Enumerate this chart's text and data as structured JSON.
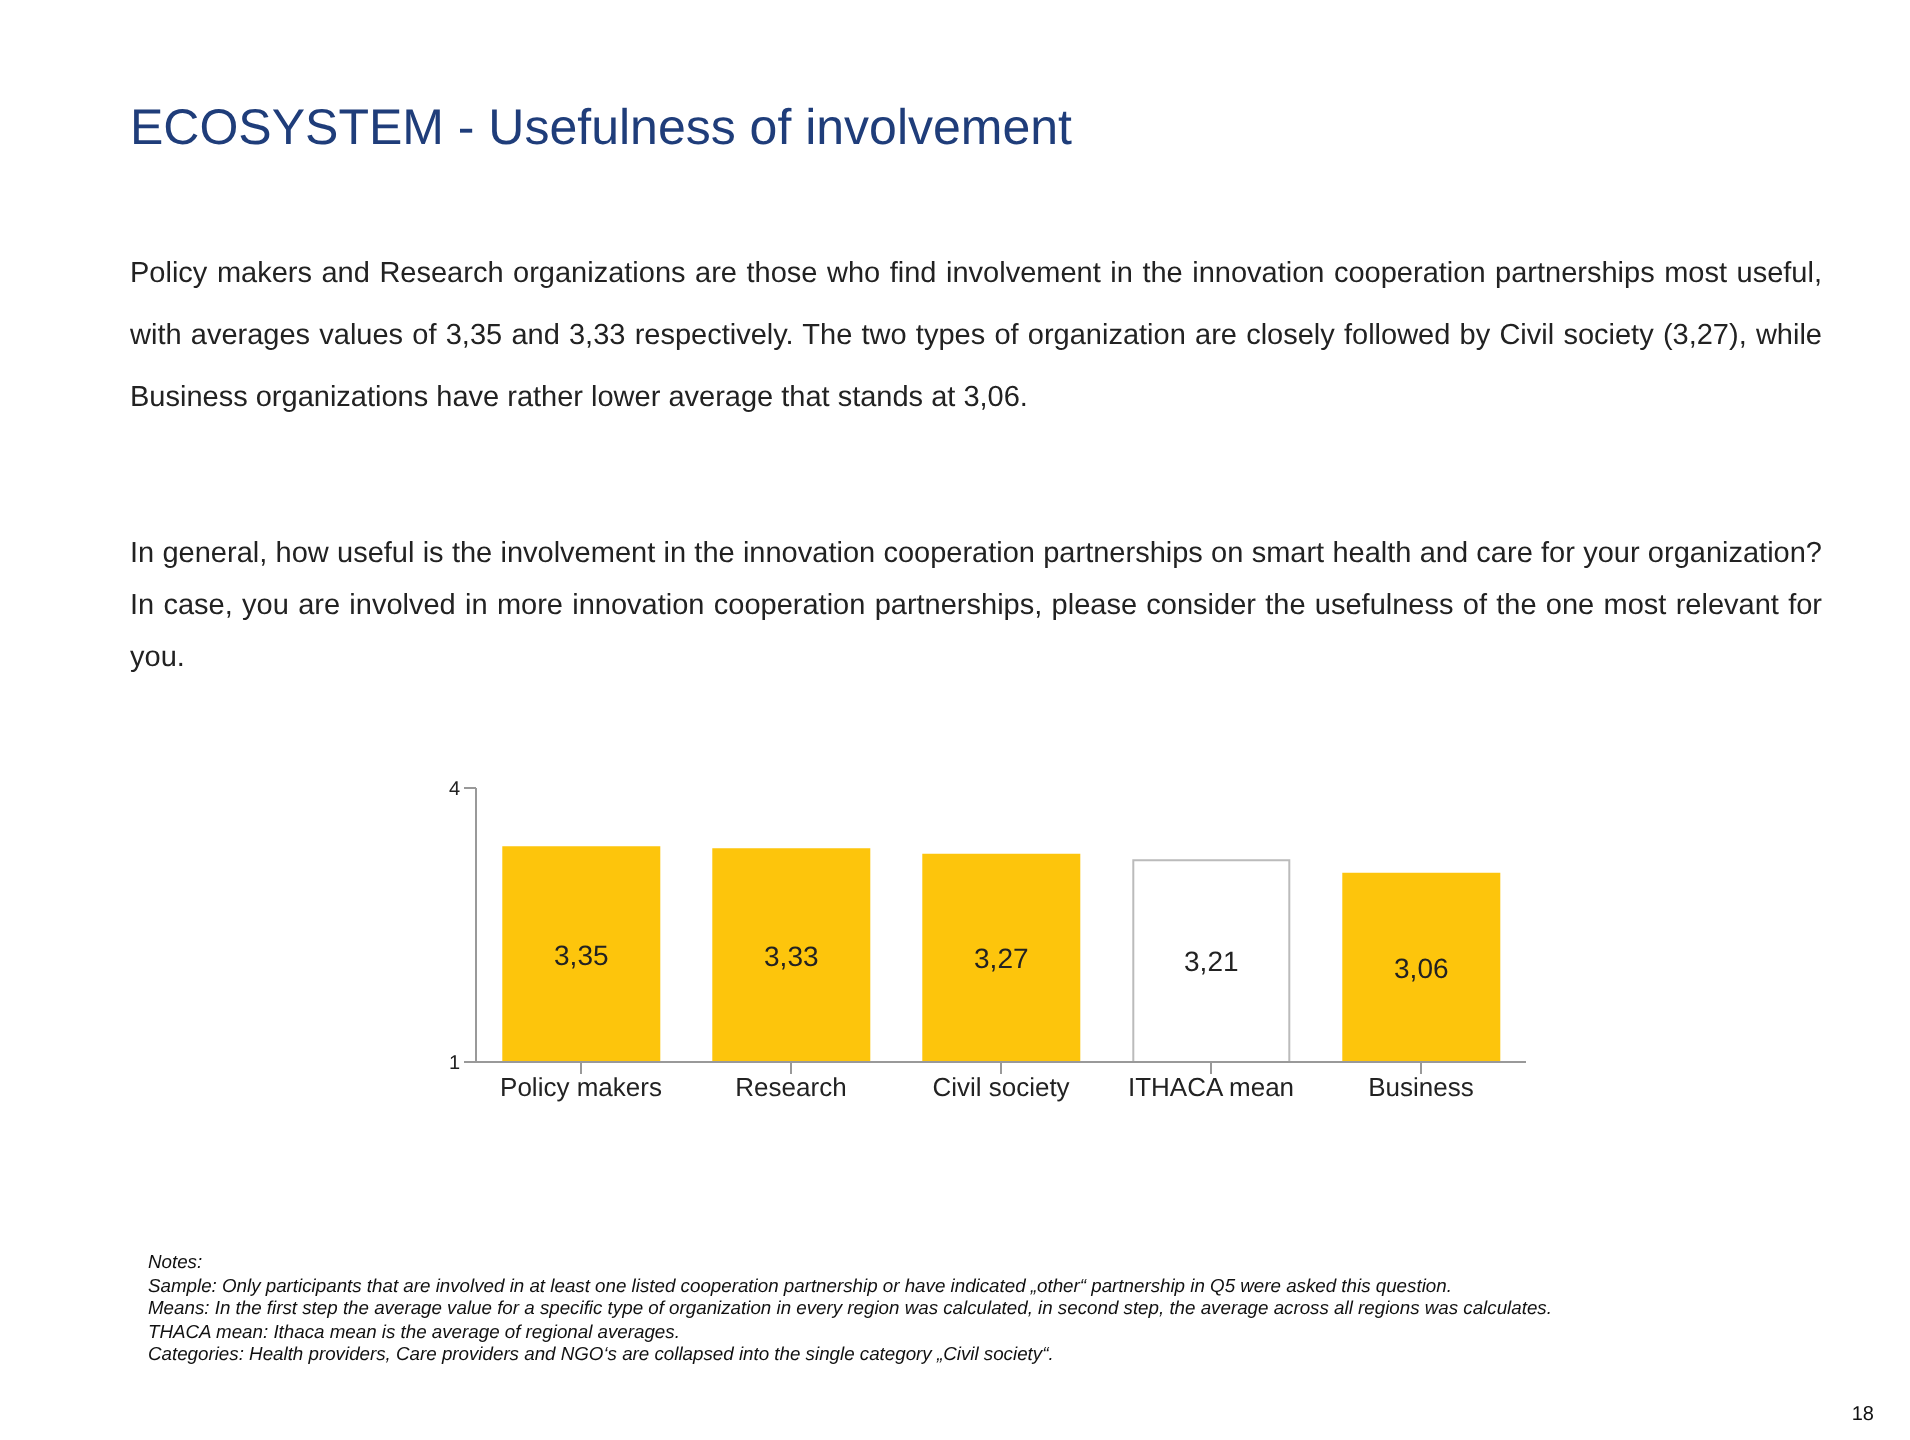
{
  "chart_data": {
    "type": "bar",
    "title": "ECOSYSTEM - Usefulness of involvement",
    "subtitle": "Policy makers and Research organizations are those who find involvement in the innovation cooperation partnerships most useful, with averages values of 3,35 and 3,33 respectively. The two types of organization are closely followed by Civil society (3,27), while Business organizations have rather lower average that stands at 3,06.",
    "annotations": [
      "In general, how useful is the involvement in the innovation cooperation partnerships on smart health and care for your organization? In case, you are involved in more innovation cooperation partnerships, please consider the usefulness of the one most relevant for you.",
      "Notes:",
      "Sample: Only participants that are involved in at least one listed cooperation partnership or have indicated „other“ partnership in Q5 were asked this question.",
      "Means: In the first step the average value for a specific type of organization in every region was calculated, in second step, the average across all regions was calculates.",
      "THACA mean: Ithaca mean is the average of regional averages.",
      "Categories: Health providers, Care providers and NGO‘s are collapsed into the single category „Civil society“.",
      "18"
    ],
    "categories": [
      "Policy makers",
      "Research",
      "Civil society",
      "ITHACA mean",
      "Business"
    ],
    "values": [
      3.35,
      3.33,
      3.27,
      3.21,
      3.06
    ],
    "colors": [
      "#fdc50c",
      "#fdc50c",
      "#fdc50c",
      "#ffffff",
      "#fdc50c"
    ],
    "value_labels": [
      "3,35",
      "3,33",
      "3,27",
      "3,21",
      "3,06"
    ],
    "ylim": [
      1,
      4
    ],
    "yticks": [
      1,
      4
    ],
    "grid": false,
    "legend": false
  }
}
